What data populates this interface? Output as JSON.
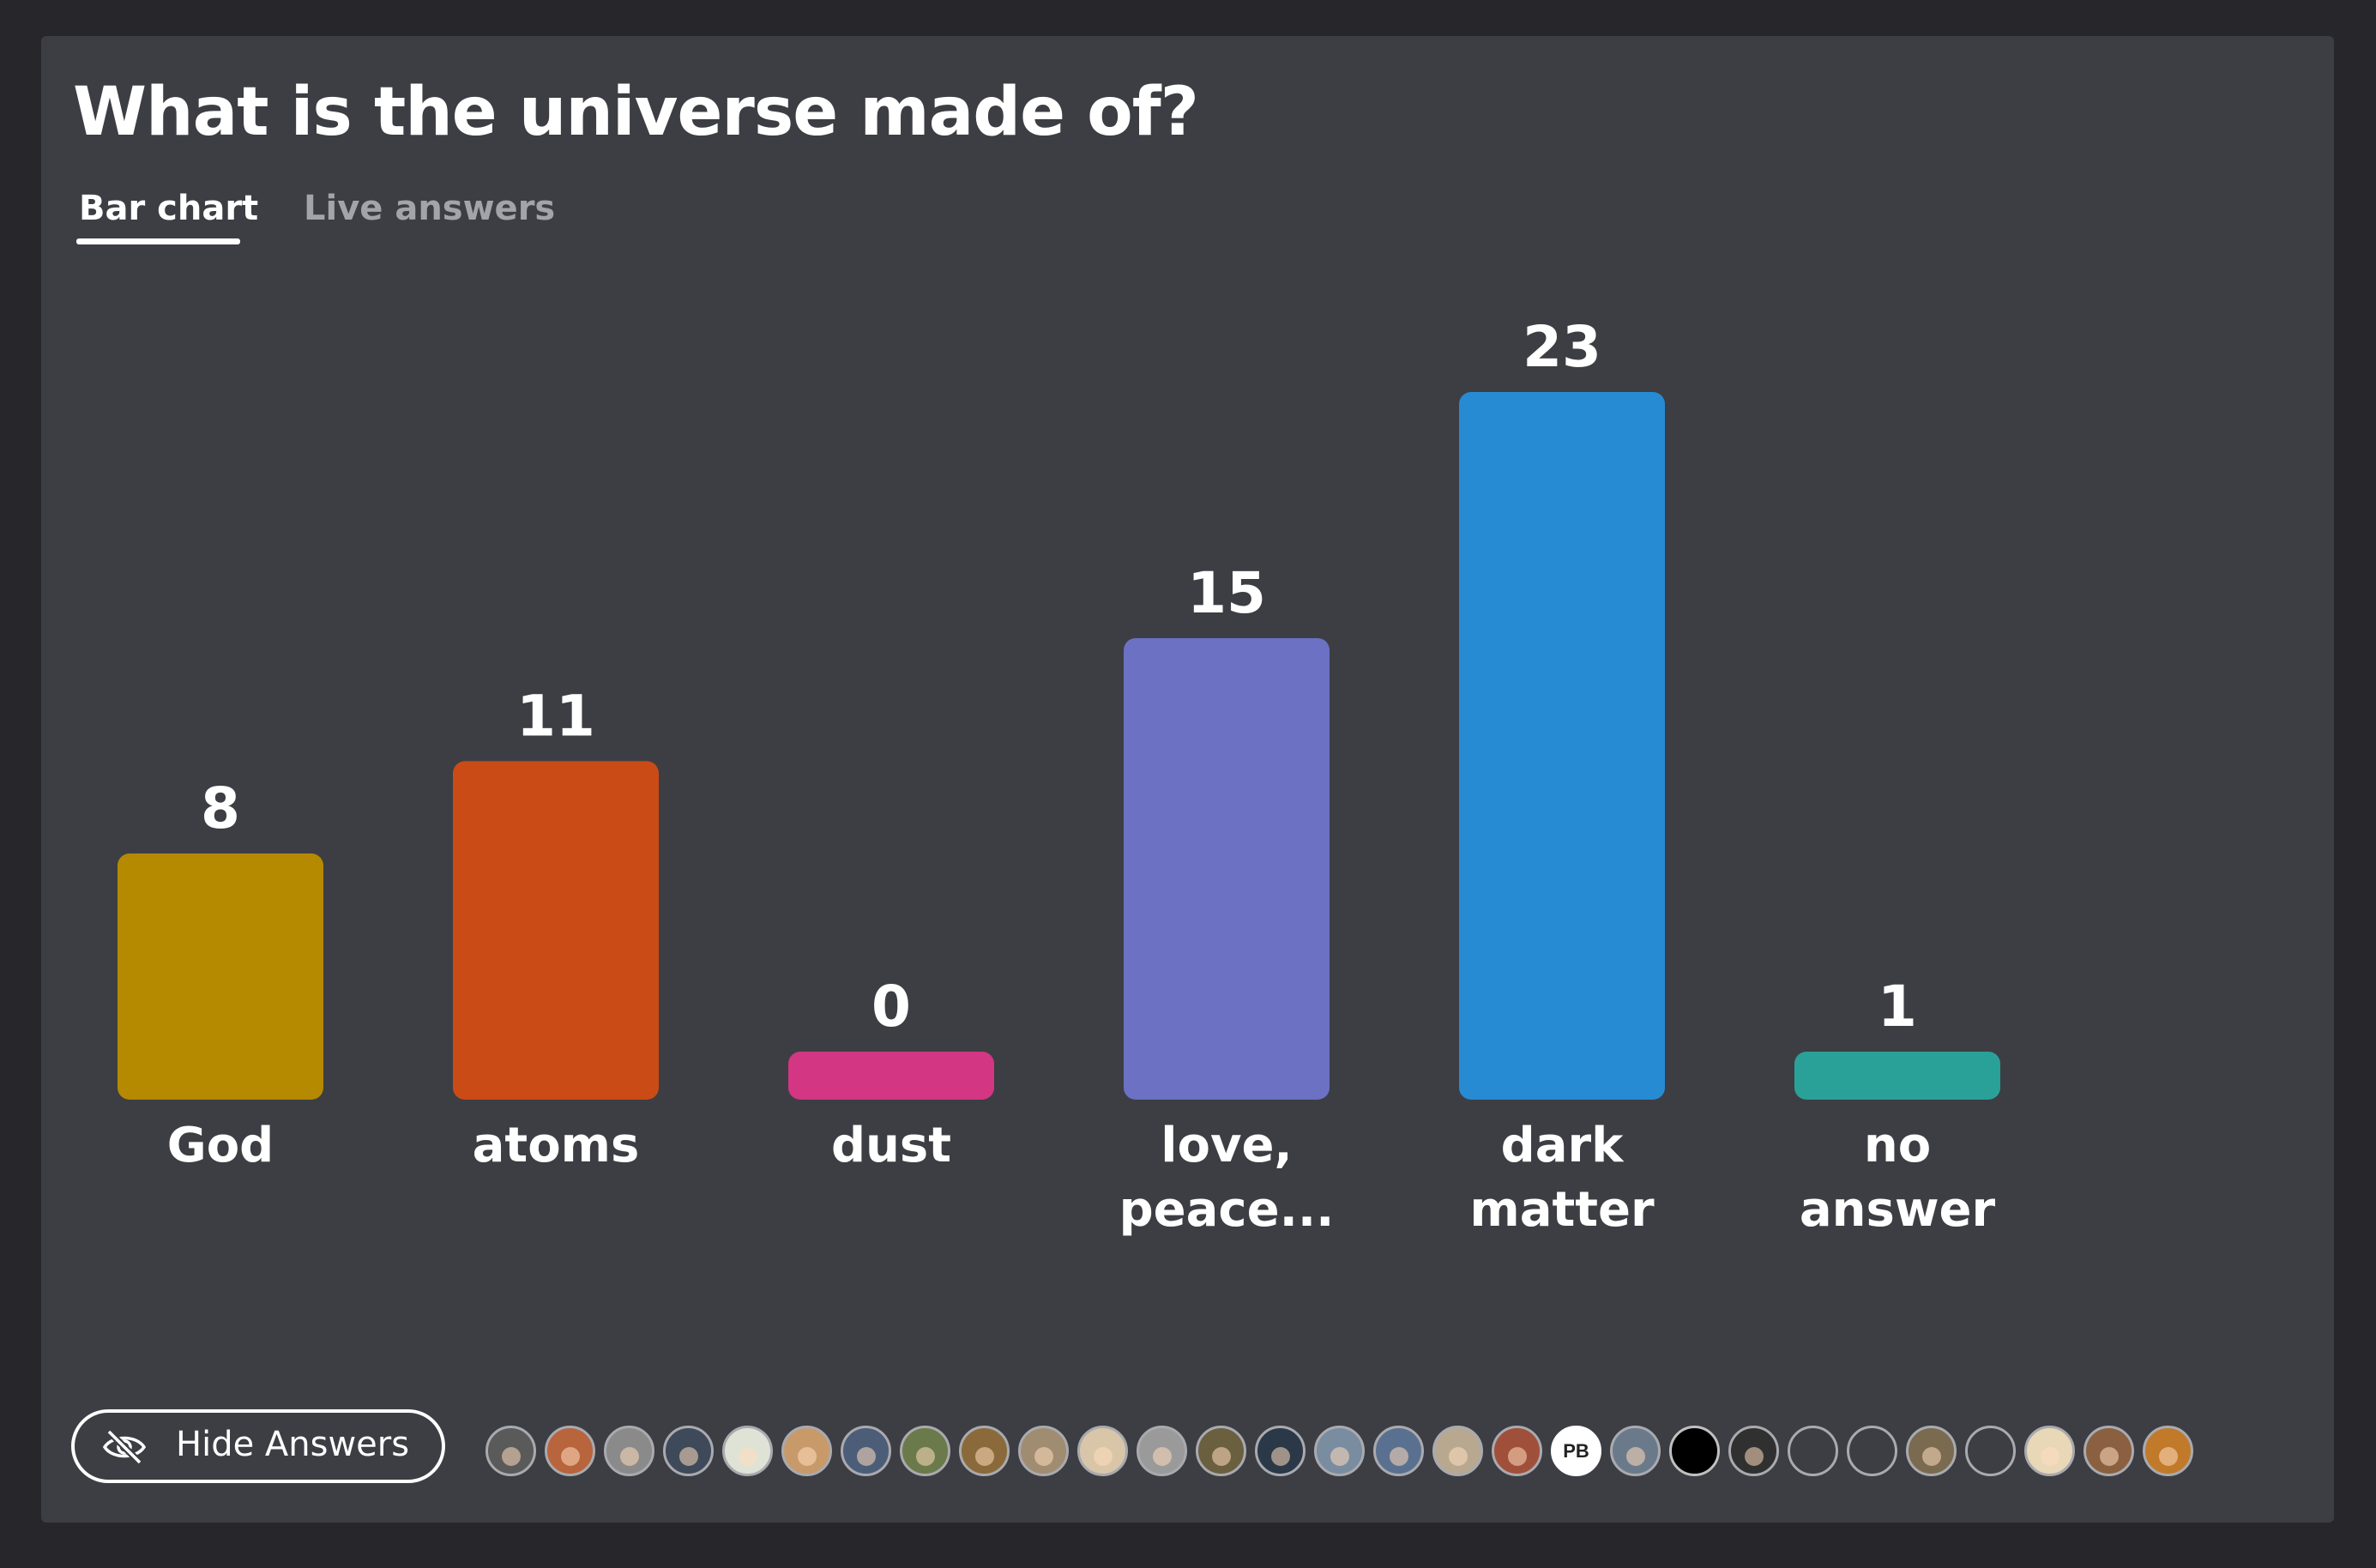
{
  "title": "What is the universe made of?",
  "tabs": [
    {
      "label": "Bar chart",
      "active": true
    },
    {
      "label": "Live answers",
      "active": false
    }
  ],
  "hide_button": {
    "label": "Hide Answers",
    "icon": "eye-slash-icon"
  },
  "chart_data": {
    "type": "bar",
    "categories": [
      "God",
      "atoms",
      "dust",
      "love, peace...",
      "dark matter",
      "no answer"
    ],
    "category_lines": [
      [
        "God"
      ],
      [
        "atoms"
      ],
      [
        "dust"
      ],
      [
        "love,",
        "peace..."
      ],
      [
        "dark",
        "matter"
      ],
      [
        "no",
        "answer"
      ]
    ],
    "values": [
      8,
      11,
      0,
      15,
      23,
      1
    ],
    "colors": [
      "#b58900",
      "#cb4b16",
      "#d33682",
      "#6c71c4",
      "#268bd2",
      "#2aa198"
    ],
    "title": "What is the universe made of?",
    "xlabel": "",
    "ylabel": "",
    "ylim": [
      0,
      23
    ],
    "grid": false,
    "data_labels": true
  },
  "avatars": [
    {
      "kind": "photo",
      "color": "#5a5a5a"
    },
    {
      "kind": "photo",
      "color": "#b8643c"
    },
    {
      "kind": "photo",
      "color": "#8a8a8a"
    },
    {
      "kind": "photo",
      "color": "#3e4a5a"
    },
    {
      "kind": "photo",
      "color": "#dfe3d6"
    },
    {
      "kind": "photo",
      "color": "#c89a6a"
    },
    {
      "kind": "photo",
      "color": "#4c5d78"
    },
    {
      "kind": "photo",
      "color": "#6b7a4a"
    },
    {
      "kind": "photo",
      "color": "#8a6a3a"
    },
    {
      "kind": "photo",
      "color": "#a08c70"
    },
    {
      "kind": "photo",
      "color": "#d9c5a8"
    },
    {
      "kind": "photo",
      "color": "#9a9a9a"
    },
    {
      "kind": "photo",
      "color": "#6a6040"
    },
    {
      "kind": "photo",
      "color": "#2a3848"
    },
    {
      "kind": "photo",
      "color": "#7a8ca0"
    },
    {
      "kind": "photo",
      "color": "#5a7090"
    },
    {
      "kind": "photo",
      "color": "#b8a890"
    },
    {
      "kind": "photo",
      "color": "#a0503a"
    },
    {
      "kind": "initials",
      "text": "PB"
    },
    {
      "kind": "photo",
      "color": "#6a7a8a"
    },
    {
      "kind": "black"
    },
    {
      "kind": "photo",
      "color": "#303030"
    },
    {
      "kind": "empty"
    },
    {
      "kind": "empty"
    },
    {
      "kind": "photo",
      "color": "#7a6a50"
    },
    {
      "kind": "empty"
    },
    {
      "kind": "photo",
      "color": "#e8d8b8"
    },
    {
      "kind": "photo",
      "color": "#8a6040"
    },
    {
      "kind": "photo",
      "color": "#c07a2a"
    }
  ]
}
